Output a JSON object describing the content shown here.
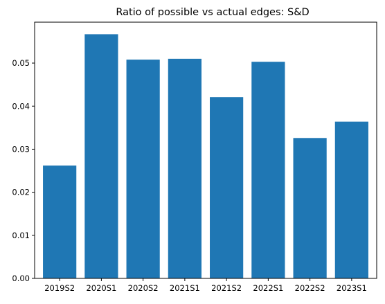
{
  "chart_data": {
    "type": "bar",
    "title": "Ratio of possible vs actual edges: S&D",
    "xlabel": "",
    "ylabel": "",
    "categories": [
      "2019S2",
      "2020S1",
      "2020S2",
      "2021S1",
      "2021S2",
      "2022S1",
      "2022S2",
      "2023S1"
    ],
    "values": [
      0.0262,
      0.0567,
      0.0508,
      0.051,
      0.0421,
      0.0503,
      0.0326,
      0.0364
    ],
    "ylim": [
      0,
      0.0595
    ],
    "yticks": [
      0.0,
      0.01,
      0.02,
      0.03,
      0.04,
      0.05
    ],
    "ytick_labels": [
      "0.00",
      "0.01",
      "0.02",
      "0.03",
      "0.04",
      "0.05"
    ],
    "bar_color": "#1f77b4",
    "grid": false,
    "legend": "none"
  }
}
